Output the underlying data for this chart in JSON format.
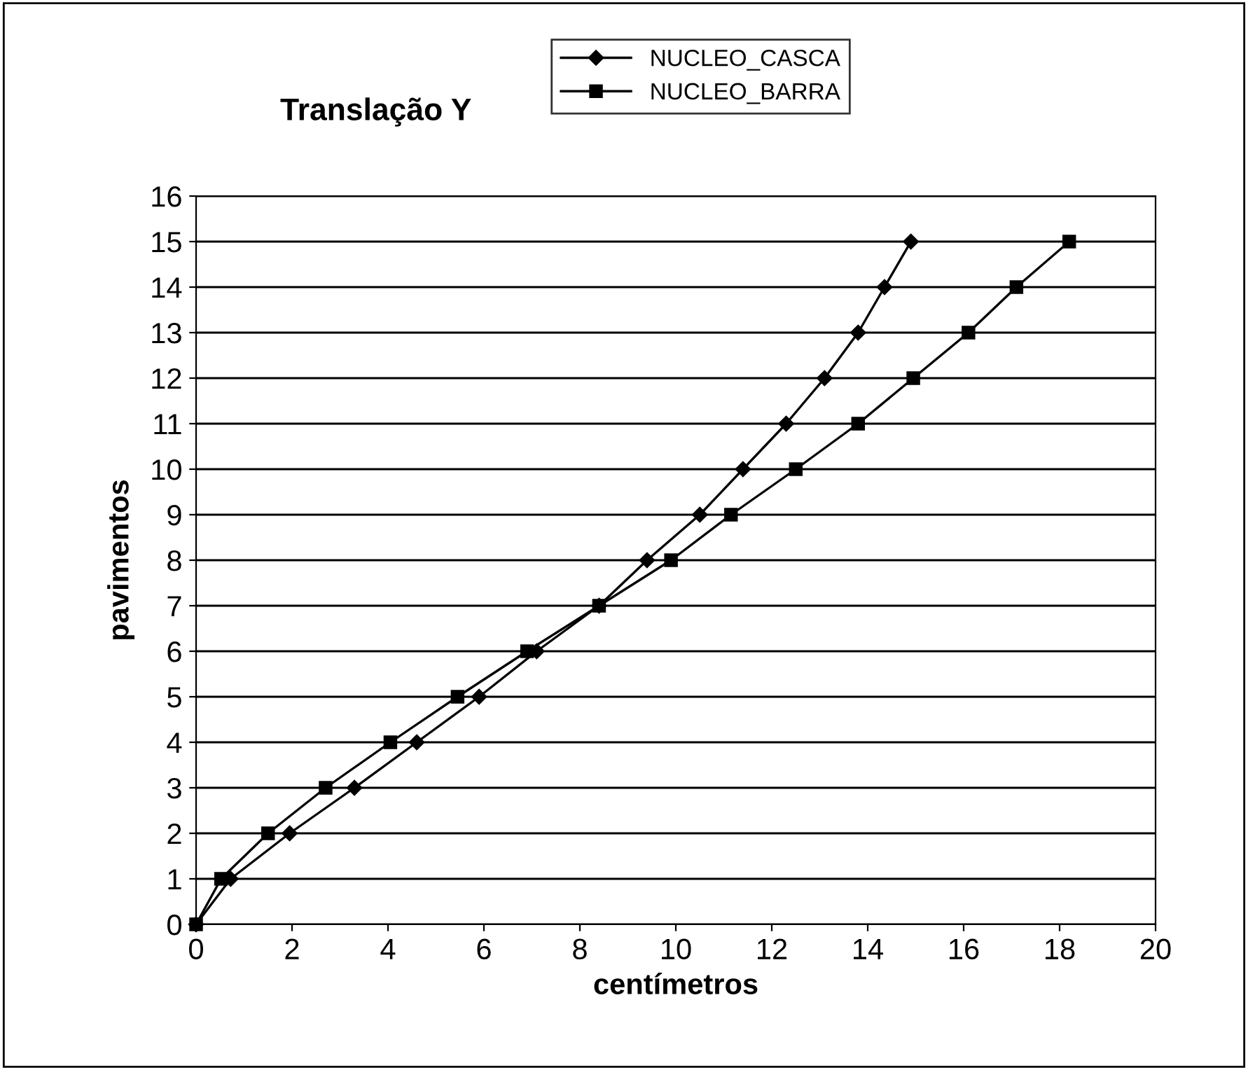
{
  "chart_data": {
    "type": "line",
    "title": "Translação Y",
    "xlabel": "centímetros",
    "ylabel": "pavimentos",
    "xlim": [
      0,
      20
    ],
    "xticks": [
      0,
      2,
      4,
      6,
      8,
      10,
      12,
      14,
      16,
      18,
      20
    ],
    "ylim": [
      0,
      16
    ],
    "yticks": [
      0,
      1,
      2,
      3,
      4,
      5,
      6,
      7,
      8,
      9,
      10,
      11,
      12,
      13,
      14,
      15,
      16
    ],
    "grid": "y",
    "legend": "top right",
    "series": [
      {
        "name": "NUCLEO_CASCA",
        "color": "#000000",
        "marker": "diamond",
        "x": [
          0,
          0.72,
          1.95,
          3.3,
          4.6,
          5.9,
          7.1,
          8.4,
          9.4,
          10.5,
          11.4,
          12.3,
          13.1,
          13.8,
          14.35,
          14.9
        ],
        "values": [
          0,
          1,
          2,
          3,
          4,
          5,
          6,
          7,
          8,
          9,
          10,
          11,
          12,
          13,
          14,
          15
        ]
      },
      {
        "name": "NUCLEO_BARRA",
        "color": "#000000",
        "marker": "square",
        "x": [
          0,
          0.52,
          1.5,
          2.7,
          4.05,
          5.45,
          6.9,
          8.4,
          9.9,
          11.15,
          12.5,
          13.8,
          14.95,
          16.1,
          17.1,
          18.2
        ],
        "values": [
          0,
          1,
          2,
          3,
          4,
          5,
          6,
          7,
          8,
          9,
          10,
          11,
          12,
          13,
          14,
          15
        ]
      }
    ]
  }
}
